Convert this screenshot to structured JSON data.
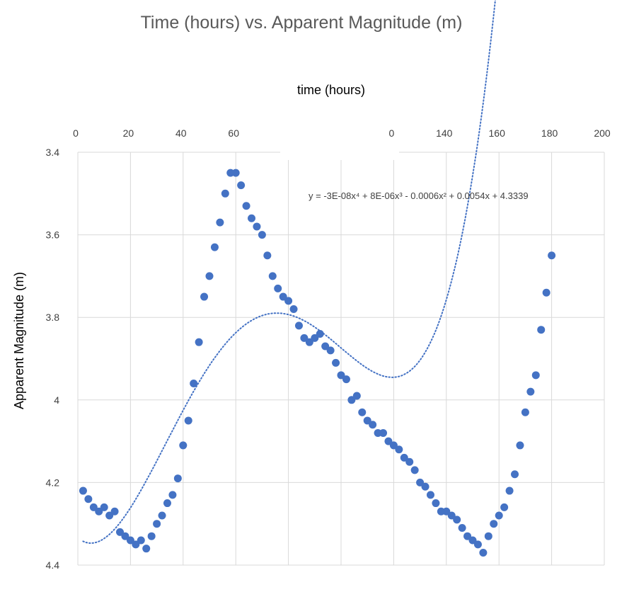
{
  "chart_data": {
    "type": "scatter",
    "title": "Time (hours) vs. Apparent Magnitude (m)",
    "xlabel": "time (hours)",
    "ylabel": "Apparent Magnitude (m)",
    "xlim": [
      0,
      200
    ],
    "ylim": [
      3.4,
      4.4
    ],
    "y_inverted": true,
    "grid": true,
    "x_tick_labels": [
      "0",
      "20",
      "40",
      "60",
      "0",
      "140",
      "160",
      "180",
      "200"
    ],
    "y_tick_labels": [
      "3.4",
      "3.6",
      "3.8",
      "4",
      "4.2",
      "4.4"
    ],
    "trendline": {
      "type": "polynomial",
      "order": 4,
      "style": "dotted",
      "equation_label": "y = -3E-08x⁴ + 8E-06x³ - 0.0006x² + 0.0054x + 4.3339",
      "coefficients": [
        -3e-08,
        8e-06,
        -0.0006,
        0.0054,
        4.3339
      ],
      "x_range": [
        2,
        180
      ]
    },
    "colors": {
      "marker": "#4472c4",
      "trendline": "#4472c4",
      "grid": "#d9d9d9"
    },
    "series": [
      {
        "x": [
          2,
          4,
          6,
          8,
          10,
          12,
          14,
          16,
          18,
          20,
          22,
          24,
          26,
          28,
          30,
          32,
          34,
          36,
          38,
          40,
          42,
          44,
          46,
          48,
          50,
          52,
          54,
          56,
          58,
          60,
          62,
          64,
          66,
          68,
          70,
          72,
          74,
          76,
          78,
          80,
          82,
          84,
          86,
          88,
          90,
          92,
          94,
          96,
          98,
          100,
          102,
          104,
          106,
          108,
          110,
          112,
          114,
          116,
          118,
          120,
          122,
          124,
          126,
          128,
          130,
          132,
          134,
          136,
          138,
          140,
          142,
          144,
          146,
          148,
          150,
          152,
          154,
          156,
          158,
          160,
          162,
          164,
          166,
          168,
          170,
          172,
          174,
          176,
          178,
          180
        ],
        "y": [
          4.22,
          4.24,
          4.26,
          4.27,
          4.26,
          4.28,
          4.27,
          4.32,
          4.33,
          4.34,
          4.35,
          4.34,
          4.36,
          4.33,
          4.3,
          4.28,
          4.25,
          4.23,
          4.19,
          4.11,
          4.05,
          3.96,
          3.86,
          3.75,
          3.7,
          3.63,
          3.57,
          3.5,
          3.45,
          3.45,
          3.48,
          3.53,
          3.56,
          3.58,
          3.6,
          3.65,
          3.7,
          3.73,
          3.75,
          3.76,
          3.78,
          3.82,
          3.85,
          3.86,
          3.85,
          3.84,
          3.87,
          3.88,
          3.91,
          3.94,
          3.95,
          4.0,
          3.99,
          4.03,
          4.05,
          4.06,
          4.08,
          4.08,
          4.1,
          4.11,
          4.12,
          4.14,
          4.15,
          4.17,
          4.2,
          4.21,
          4.23,
          4.25,
          4.27,
          4.27,
          4.28,
          4.29,
          4.31,
          4.33,
          4.34,
          4.35,
          4.37,
          4.33,
          4.3,
          4.28,
          4.26,
          4.22,
          4.18,
          4.11,
          4.03,
          3.98,
          3.94,
          3.83,
          3.74,
          3.65
        ]
      }
    ]
  }
}
